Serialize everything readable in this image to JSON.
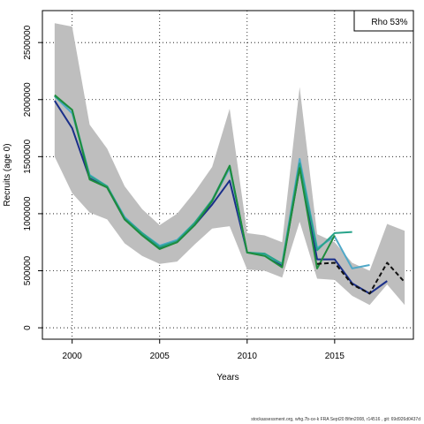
{
  "chart_data": {
    "type": "line",
    "xlabel": "Years",
    "ylabel": "Recruits (age 0)",
    "xlim": [
      1998.3,
      2019.5
    ],
    "ylim": [
      -100000,
      2780000
    ],
    "xticks": [
      2000,
      2005,
      2010,
      2015
    ],
    "yticks": [
      0,
      500000,
      1000000,
      1500000,
      2000000,
      2500000
    ],
    "grid": true,
    "annotation": "Rho 53%",
    "annotation_position": "top-right",
    "band": {
      "fill": "#bebebe",
      "x": [
        1999,
        2000,
        2001,
        2002,
        2003,
        2004,
        2005,
        2006,
        2007,
        2008,
        2009,
        2010,
        2011,
        2012,
        2013,
        2014,
        2015,
        2016,
        2017,
        2018,
        2019
      ],
      "upper": [
        2670000,
        2640000,
        1780000,
        1570000,
        1240000,
        1040000,
        900000,
        1000000,
        1190000,
        1410000,
        1920000,
        830000,
        810000,
        750000,
        2110000,
        820000,
        750000,
        570000,
        500000,
        910000,
        850000
      ],
      "lower": [
        1500000,
        1180000,
        1010000,
        950000,
        740000,
        630000,
        560000,
        580000,
        730000,
        870000,
        890000,
        510000,
        500000,
        440000,
        930000,
        430000,
        420000,
        280000,
        200000,
        380000,
        200000
      ]
    },
    "series": [
      {
        "color": "#1a2f8a",
        "dashed": false,
        "x": [
          1999,
          2000,
          2001,
          2002,
          2003,
          2004,
          2005,
          2006,
          2007,
          2008,
          2009,
          2010,
          2011,
          2012,
          2013,
          2014,
          2015,
          2016,
          2017,
          2018
        ],
        "values": [
          1990000,
          1750000,
          1310000,
          1230000,
          950000,
          820000,
          700000,
          750000,
          900000,
          1080000,
          1290000,
          660000,
          640000,
          540000,
          1400000,
          600000,
          600000,
          390000,
          300000,
          410000
        ]
      },
      {
        "color": "#4fa8c8",
        "dashed": false,
        "x": [
          1999,
          2000,
          2001,
          2002,
          2003,
          2004,
          2005,
          2006,
          2007,
          2008,
          2009,
          2010,
          2011,
          2012,
          2013,
          2014,
          2015,
          2016,
          2017
        ],
        "values": [
          2030000,
          1880000,
          1340000,
          1240000,
          970000,
          830000,
          720000,
          770000,
          920000,
          1110000,
          1400000,
          660000,
          640000,
          560000,
          1480000,
          700000,
          800000,
          520000,
          550000
        ]
      },
      {
        "color": "#27a38a",
        "dashed": false,
        "x": [
          1999,
          2000,
          2001,
          2002,
          2003,
          2004,
          2005,
          2006,
          2007,
          2008,
          2009,
          2010,
          2011,
          2012,
          2013,
          2014,
          2015,
          2016
        ],
        "values": [
          2030000,
          1910000,
          1330000,
          1240000,
          960000,
          830000,
          710000,
          760000,
          920000,
          1120000,
          1420000,
          660000,
          650000,
          560000,
          1440000,
          680000,
          830000,
          840000
        ]
      },
      {
        "color": "#1e8c3c",
        "dashed": false,
        "x": [
          1999,
          2000,
          2001,
          2002,
          2003,
          2004,
          2005,
          2006,
          2007,
          2008,
          2009,
          2010,
          2011,
          2012,
          2013,
          2014,
          2015
        ],
        "values": [
          2040000,
          1910000,
          1300000,
          1230000,
          950000,
          810000,
          690000,
          750000,
          900000,
          1110000,
          1420000,
          660000,
          630000,
          530000,
          1400000,
          520000,
          810000
        ]
      },
      {
        "color": "#111111",
        "dashed": true,
        "x": [
          2014,
          2015,
          2016,
          2017,
          2018,
          2019
        ],
        "values": [
          560000,
          570000,
          380000,
          300000,
          570000,
          400000
        ]
      }
    ]
  },
  "footer": "stockassessment.org, whg.7b-ce-k  FRA  Sept20  Bfim2008,  r14516  ,  git:  69d926d0437d"
}
